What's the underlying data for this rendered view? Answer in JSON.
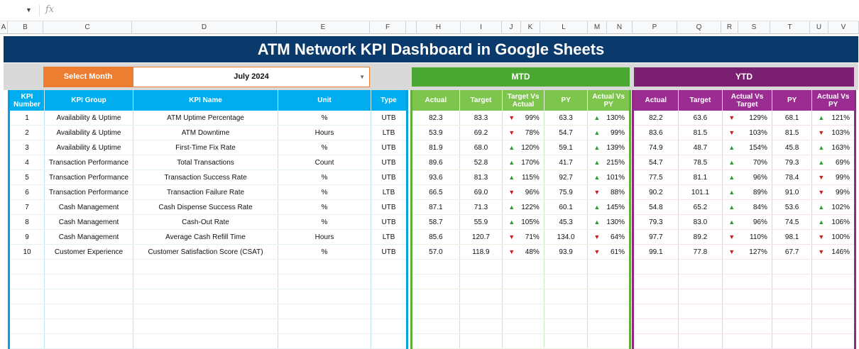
{
  "formula_bar": {
    "fx_label": "fx",
    "namebox_arrow": "▼"
  },
  "columns": [
    "A",
    "B",
    "C",
    "D",
    "E",
    "F",
    "H",
    "I",
    "J",
    "K",
    "L",
    "M",
    "N",
    "P",
    "Q",
    "R",
    "S",
    "T",
    "U",
    "V"
  ],
  "title": "ATM Network KPI Dashboard in Google Sheets",
  "controls": {
    "select_label": "Select Month",
    "month": "July 2024",
    "mtd_label": "MTD",
    "ytd_label": "YTD"
  },
  "kpi_headers": [
    "KPI Number",
    "KPI Group",
    "KPI Name",
    "Unit",
    "Type"
  ],
  "mtd_headers": [
    "Actual",
    "Target",
    "Target Vs Actual",
    "PY",
    "Actual Vs PY"
  ],
  "ytd_headers": [
    "Actual",
    "Target",
    "Actual Vs Target",
    "PY",
    "Actual Vs PY"
  ],
  "rows": [
    {
      "num": "1",
      "group": "Availability & Uptime",
      "name": "ATM Uptime Percentage",
      "unit": "%",
      "type": "UTB",
      "mtd": {
        "actual": "82.3",
        "target": "83.3",
        "tva_dir": "down",
        "tva": "99%",
        "py": "63.3",
        "avp_dir": "up",
        "avp": "130%"
      },
      "ytd": {
        "actual": "82.2",
        "target": "63.6",
        "avt_dir": "down",
        "avt": "129%",
        "py": "68.1",
        "avp_dir": "up",
        "avp": "121%"
      }
    },
    {
      "num": "2",
      "group": "Availability & Uptime",
      "name": "ATM Downtime",
      "unit": "Hours",
      "type": "LTB",
      "mtd": {
        "actual": "53.9",
        "target": "69.2",
        "tva_dir": "down",
        "tva": "78%",
        "py": "54.7",
        "avp_dir": "up",
        "avp": "99%"
      },
      "ytd": {
        "actual": "83.6",
        "target": "81.5",
        "avt_dir": "down",
        "avt": "103%",
        "py": "81.5",
        "avp_dir": "down",
        "avp": "103%"
      }
    },
    {
      "num": "3",
      "group": "Availability & Uptime",
      "name": "First-Time Fix Rate",
      "unit": "%",
      "type": "UTB",
      "mtd": {
        "actual": "81.9",
        "target": "68.0",
        "tva_dir": "up",
        "tva": "120%",
        "py": "59.1",
        "avp_dir": "up",
        "avp": "139%"
      },
      "ytd": {
        "actual": "74.9",
        "target": "48.7",
        "avt_dir": "up",
        "avt": "154%",
        "py": "45.8",
        "avp_dir": "up",
        "avp": "163%"
      }
    },
    {
      "num": "4",
      "group": "Transaction Performance",
      "name": "Total Transactions",
      "unit": "Count",
      "type": "UTB",
      "mtd": {
        "actual": "89.6",
        "target": "52.8",
        "tva_dir": "up",
        "tva": "170%",
        "py": "41.7",
        "avp_dir": "up",
        "avp": "215%"
      },
      "ytd": {
        "actual": "54.7",
        "target": "78.5",
        "avt_dir": "up",
        "avt": "70%",
        "py": "79.3",
        "avp_dir": "up",
        "avp": "69%"
      }
    },
    {
      "num": "5",
      "group": "Transaction Performance",
      "name": "Transaction Success Rate",
      "unit": "%",
      "type": "UTB",
      "mtd": {
        "actual": "93.6",
        "target": "81.3",
        "tva_dir": "up",
        "tva": "115%",
        "py": "92.7",
        "avp_dir": "up",
        "avp": "101%"
      },
      "ytd": {
        "actual": "77.5",
        "target": "81.1",
        "avt_dir": "up",
        "avt": "96%",
        "py": "78.4",
        "avp_dir": "down",
        "avp": "99%"
      }
    },
    {
      "num": "6",
      "group": "Transaction Performance",
      "name": "Transaction Failure Rate",
      "unit": "%",
      "type": "LTB",
      "mtd": {
        "actual": "66.5",
        "target": "69.0",
        "tva_dir": "down",
        "tva": "96%",
        "py": "75.9",
        "avp_dir": "down",
        "avp": "88%"
      },
      "ytd": {
        "actual": "90.2",
        "target": "101.1",
        "avt_dir": "up",
        "avt": "89%",
        "py": "91.0",
        "avp_dir": "down",
        "avp": "99%"
      }
    },
    {
      "num": "7",
      "group": "Cash Management",
      "name": "Cash Dispense Success Rate",
      "unit": "%",
      "type": "UTB",
      "mtd": {
        "actual": "87.1",
        "target": "71.3",
        "tva_dir": "up",
        "tva": "122%",
        "py": "60.1",
        "avp_dir": "up",
        "avp": "145%"
      },
      "ytd": {
        "actual": "54.8",
        "target": "65.2",
        "avt_dir": "up",
        "avt": "84%",
        "py": "53.6",
        "avp_dir": "up",
        "avp": "102%"
      }
    },
    {
      "num": "8",
      "group": "Cash Management",
      "name": "Cash-Out Rate",
      "unit": "%",
      "type": "UTB",
      "mtd": {
        "actual": "58.7",
        "target": "55.9",
        "tva_dir": "up",
        "tva": "105%",
        "py": "45.3",
        "avp_dir": "up",
        "avp": "130%"
      },
      "ytd": {
        "actual": "79.3",
        "target": "83.0",
        "avt_dir": "up",
        "avt": "96%",
        "py": "74.5",
        "avp_dir": "up",
        "avp": "106%"
      }
    },
    {
      "num": "9",
      "group": "Cash Management",
      "name": "Average Cash Refill Time",
      "unit": "Hours",
      "type": "LTB",
      "mtd": {
        "actual": "85.6",
        "target": "120.7",
        "tva_dir": "down",
        "tva": "71%",
        "py": "134.0",
        "avp_dir": "down",
        "avp": "64%"
      },
      "ytd": {
        "actual": "97.7",
        "target": "89.2",
        "avt_dir": "down",
        "avt": "110%",
        "py": "98.1",
        "avp_dir": "down",
        "avp": "100%"
      }
    },
    {
      "num": "10",
      "group": "Customer Experience",
      "name": "Customer Satisfaction Score (CSAT)",
      "unit": "%",
      "type": "UTB",
      "mtd": {
        "actual": "57.0",
        "target": "118.9",
        "tva_dir": "down",
        "tva": "48%",
        "py": "93.9",
        "avp_dir": "down",
        "avp": "61%"
      },
      "ytd": {
        "actual": "99.1",
        "target": "77.8",
        "avt_dir": "down",
        "avt": "127%",
        "py": "67.7",
        "avp_dir": "down",
        "avp": "146%"
      }
    }
  ]
}
